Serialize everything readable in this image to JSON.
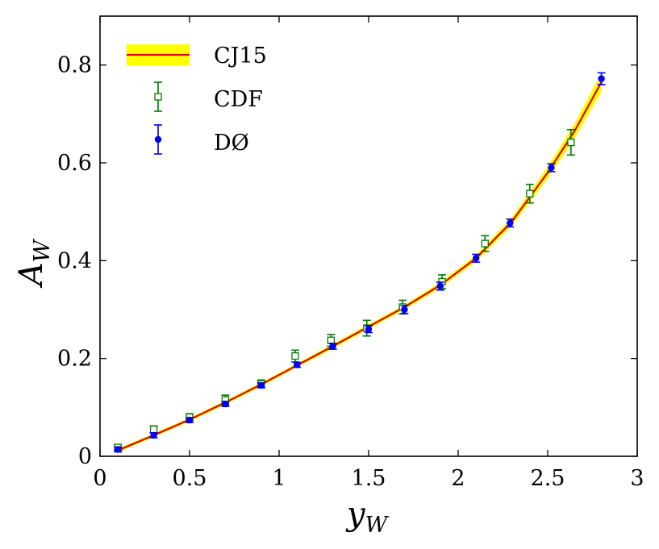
{
  "chart_data": {
    "type": "scatter",
    "xlabel": {
      "main": "y",
      "sub": "W"
    },
    "ylabel": {
      "main": "A",
      "sub": "W"
    },
    "xlim": [
      0,
      3
    ],
    "ylim": [
      0,
      0.9
    ],
    "xticks": [
      0,
      0.5,
      1,
      1.5,
      2,
      2.5,
      3
    ],
    "xtick_labels": [
      "0",
      "0.5",
      "1",
      "1.5",
      "2",
      "2.5",
      "3"
    ],
    "yticks": [
      0,
      0.2,
      0.4,
      0.6,
      0.8
    ],
    "ytick_labels": [
      "0",
      "0.2",
      "0.4",
      "0.6",
      "0.8"
    ],
    "legend_position": "top-left",
    "series": [
      {
        "name": "CJ15",
        "kind": "band-line",
        "line_color": "#e00000",
        "band_color": "#ffff00",
        "x": [
          0.1,
          0.3,
          0.5,
          0.7,
          0.9,
          1.1,
          1.3,
          1.5,
          1.7,
          1.9,
          2.1,
          2.3,
          2.5,
          2.65,
          2.8
        ],
        "y": [
          0.012,
          0.043,
          0.075,
          0.11,
          0.147,
          0.186,
          0.225,
          0.265,
          0.305,
          0.35,
          0.405,
          0.48,
          0.58,
          0.665,
          0.765
        ],
        "band": [
          0.004,
          0.004,
          0.004,
          0.004,
          0.004,
          0.004,
          0.005,
          0.005,
          0.005,
          0.006,
          0.007,
          0.009,
          0.012,
          0.015,
          0.02
        ]
      },
      {
        "name": "CDF",
        "kind": "points",
        "marker": "open-square",
        "color": "#007a00",
        "x": [
          0.1,
          0.3,
          0.5,
          0.7,
          0.9,
          1.09,
          1.29,
          1.49,
          1.69,
          1.91,
          2.15,
          2.4,
          2.63
        ],
        "y": [
          0.018,
          0.055,
          0.08,
          0.115,
          0.148,
          0.205,
          0.237,
          0.262,
          0.305,
          0.357,
          0.435,
          0.537,
          0.642
        ],
        "err": [
          0.006,
          0.007,
          0.007,
          0.01,
          0.008,
          0.012,
          0.012,
          0.016,
          0.014,
          0.014,
          0.016,
          0.019,
          0.026
        ]
      },
      {
        "name": "DØ",
        "kind": "points",
        "marker": "filled-circle",
        "color": "#0000ee",
        "x": [
          0.1,
          0.3,
          0.5,
          0.7,
          0.9,
          1.1,
          1.3,
          1.5,
          1.7,
          1.9,
          2.1,
          2.29,
          2.52,
          2.8
        ],
        "y": [
          0.014,
          0.043,
          0.074,
          0.107,
          0.145,
          0.187,
          0.225,
          0.26,
          0.3,
          0.348,
          0.405,
          0.477,
          0.59,
          0.772
        ],
        "err": [
          0.005,
          0.005,
          0.005,
          0.005,
          0.005,
          0.005,
          0.006,
          0.007,
          0.008,
          0.008,
          0.008,
          0.008,
          0.008,
          0.012
        ]
      }
    ]
  }
}
